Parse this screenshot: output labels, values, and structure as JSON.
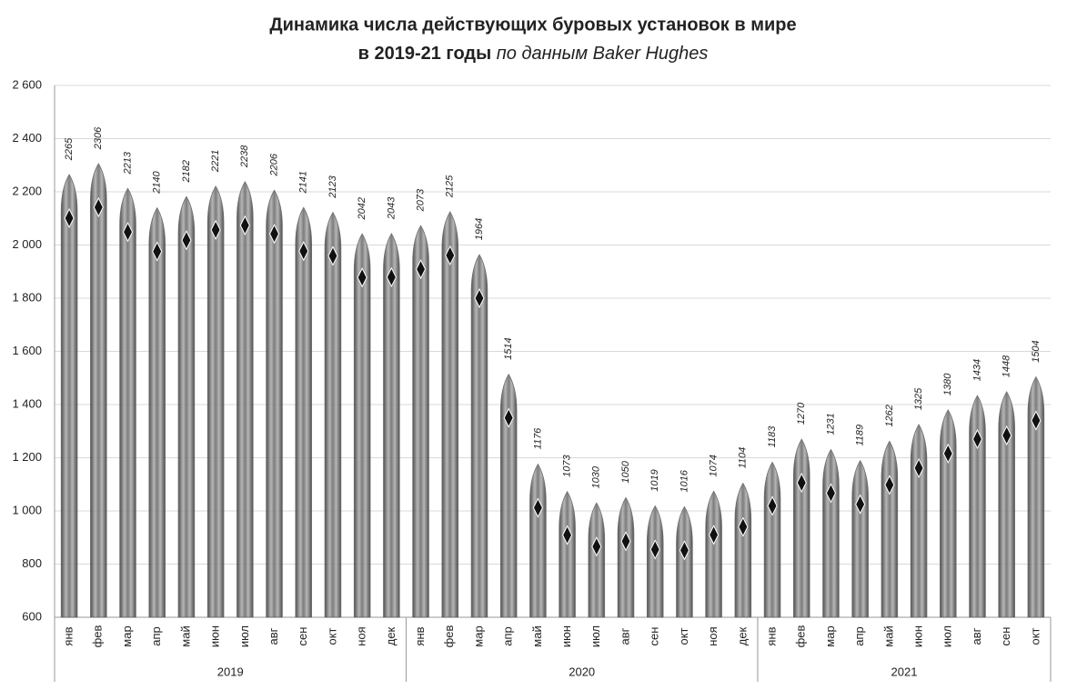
{
  "chart_data": {
    "type": "bar",
    "title": {
      "line1": "Динамика числа действующих буровых установок в мире",
      "line2_bold": "в 2019-21 годы",
      "line2_italic": "по данным Baker Hughes"
    },
    "groups": [
      {
        "name": "2019",
        "categories": [
          "янв",
          "фев",
          "мар",
          "апр",
          "май",
          "июн",
          "июл",
          "авг",
          "сен",
          "окт",
          "ноя",
          "дек"
        ],
        "values": [
          2265,
          2306,
          2213,
          2140,
          2182,
          2221,
          2238,
          2206,
          2141,
          2123,
          2042,
          2043
        ]
      },
      {
        "name": "2020",
        "categories": [
          "янв",
          "фев",
          "мар",
          "апр",
          "май",
          "июн",
          "июл",
          "авг",
          "сен",
          "окт",
          "ноя",
          "дек"
        ],
        "values": [
          2073,
          2125,
          1964,
          1514,
          1176,
          1073,
          1030,
          1050,
          1019,
          1016,
          1074,
          1104
        ]
      },
      {
        "name": "2021",
        "categories": [
          "янв",
          "фев",
          "мар",
          "апр",
          "май",
          "июн",
          "июл",
          "авг",
          "сен",
          "окт"
        ],
        "values": [
          1183,
          1270,
          1231,
          1189,
          1262,
          1325,
          1380,
          1434,
          1448,
          1504
        ]
      }
    ],
    "color": "#555555",
    "ylim": [
      600,
      2600
    ],
    "yticks": [
      600,
      800,
      {
        "value": 1000,
        "label": "1 000"
      },
      {
        "value": 1200,
        "label": "1 200"
      },
      {
        "value": 1400,
        "label": "1 400"
      },
      {
        "value": 1600,
        "label": "1 600"
      },
      {
        "value": 1800,
        "label": "1 800"
      },
      {
        "value": 2000,
        "label": "2 000"
      },
      {
        "value": 2200,
        "label": "2 200"
      },
      {
        "value": 2400,
        "label": "2 400"
      },
      {
        "value": 2600,
        "label": "2 600"
      }
    ],
    "grid": true
  }
}
